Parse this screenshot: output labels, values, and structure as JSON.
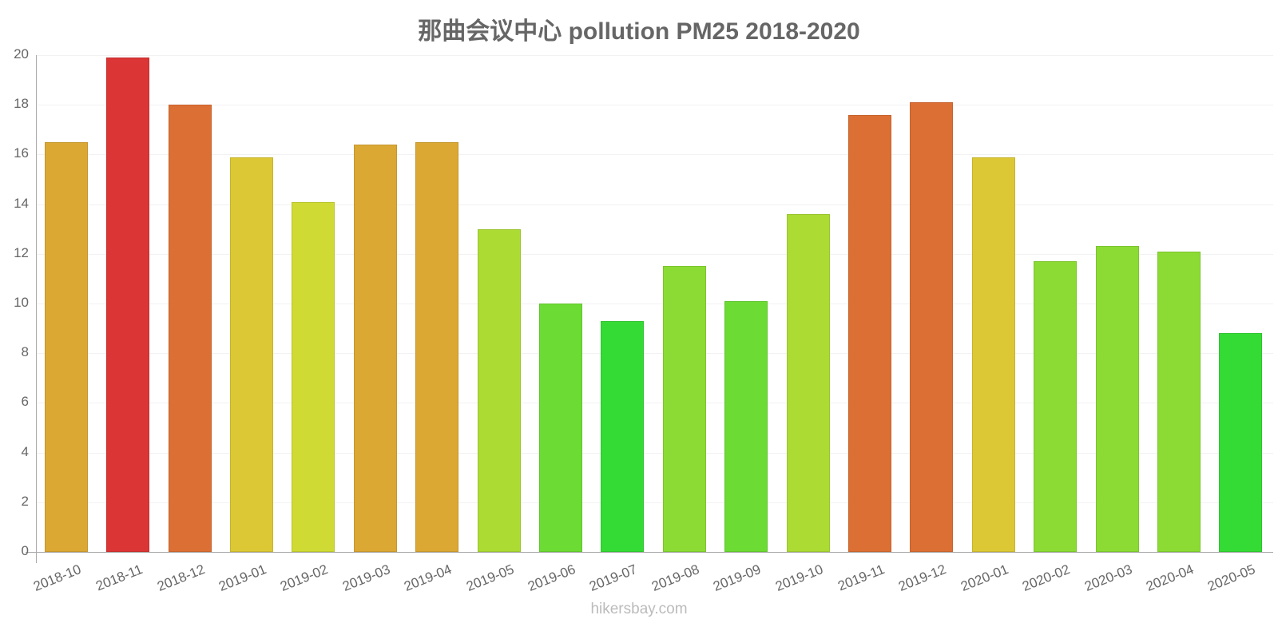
{
  "chart_data": {
    "type": "bar",
    "title": "那曲会议中心 pollution PM25 2018-2020",
    "xlabel": "",
    "ylabel": "",
    "ylim": [
      0,
      20
    ],
    "yticks": [
      0,
      2,
      4,
      6,
      8,
      10,
      12,
      14,
      16,
      18,
      20
    ],
    "grid": true,
    "legend": null,
    "categories": [
      "2018-10",
      "2018-11",
      "2018-12",
      "2019-01",
      "2019-02",
      "2019-03",
      "2019-04",
      "2019-05",
      "2019-06",
      "2019-07",
      "2019-08",
      "2019-09",
      "2019-10",
      "2019-11",
      "2019-12",
      "2020-01",
      "2020-02",
      "2020-03",
      "2020-04",
      "2020-05"
    ],
    "values": [
      16.5,
      19.9,
      18.0,
      15.9,
      14.1,
      16.4,
      16.5,
      13.0,
      10.0,
      9.3,
      11.5,
      10.1,
      13.6,
      17.6,
      18.1,
      15.9,
      11.7,
      12.3,
      12.1,
      8.8
    ],
    "colors": [
      "#dba834",
      "#db3535",
      "#dc6f34",
      "#dbc834",
      "#cfdb34",
      "#dba834",
      "#dba834",
      "#acdb34",
      "#6cdb34",
      "#35db35",
      "#8bdb34",
      "#6cdb34",
      "#acdb34",
      "#dc6f34",
      "#dc6f34",
      "#dbc834",
      "#8bdb34",
      "#8bdb34",
      "#8bdb34",
      "#35db35"
    ]
  },
  "credit": "hikersbay.com"
}
